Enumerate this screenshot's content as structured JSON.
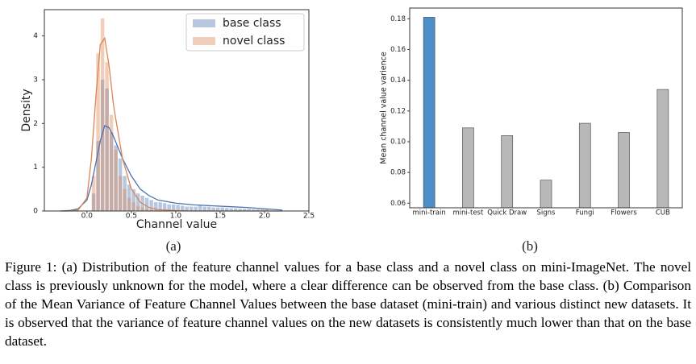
{
  "chart_data": [
    {
      "type": "histogram",
      "label": "(a)",
      "xlabel": "Channel value",
      "ylabel": "Density",
      "bins": [
        0.05,
        0.1,
        0.15,
        0.2,
        0.25,
        0.3,
        0.35,
        0.4,
        0.45,
        0.5,
        0.55,
        0.6,
        0.65,
        0.7,
        0.75,
        0.8,
        0.85,
        0.9,
        0.95,
        1.0,
        1.05,
        1.1,
        1.15,
        1.2,
        1.25,
        1.3,
        1.35,
        1.4,
        1.45,
        1.5,
        1.55,
        1.6,
        1.65,
        1.7,
        1.75,
        1.8,
        1.85,
        1.9,
        1.95,
        2.0,
        2.05
      ],
      "kde_x": [
        -0.3,
        -0.2,
        -0.1,
        0,
        0.05,
        0.1,
        0.15,
        0.2,
        0.25,
        0.3,
        0.4,
        0.5,
        0.6,
        0.7,
        0.8,
        1.0,
        1.2,
        1.4,
        1.6,
        1.8,
        2.0,
        2.2
      ],
      "series": [
        {
          "name": "base class",
          "color": "#4c72b0",
          "values": [
            0.4,
            1.6,
            3.0,
            2.8,
            1.8,
            1.5,
            1.2,
            0.8,
            0.6,
            0.5,
            0.4,
            0.35,
            0.3,
            0.25,
            0.2,
            0.2,
            0.18,
            0.15,
            0.15,
            0.14,
            0.12,
            0.1,
            0.1,
            0.1,
            0.12,
            0.1,
            0.1,
            0.08,
            0.08,
            0.08,
            0.07,
            0.06,
            0.06,
            0.05,
            0.05,
            0.05,
            0.04,
            0.04,
            0.04,
            0.04
          ],
          "kde_values": [
            0,
            0.01,
            0.05,
            0.25,
            0.6,
            1.1,
            1.6,
            1.95,
            1.9,
            1.7,
            1.2,
            0.8,
            0.5,
            0.35,
            0.25,
            0.18,
            0.14,
            0.12,
            0.1,
            0.08,
            0.05,
            0.02
          ]
        },
        {
          "name": "novel class",
          "color": "#dd8452",
          "values": [
            0.8,
            3.6,
            4.4,
            3.4,
            2.2,
            1.4,
            0.8,
            0.5,
            0.3,
            0.2,
            0.12,
            0.08,
            0.05,
            0.03,
            0.02,
            0.01,
            0,
            0,
            0,
            0,
            0,
            0,
            0,
            0,
            0,
            0,
            0,
            0,
            0,
            0,
            0,
            0,
            0,
            0,
            0,
            0,
            0,
            0,
            0,
            0
          ],
          "kde_values": [
            0,
            0,
            0.02,
            0.3,
            1.2,
            2.6,
            3.8,
            3.95,
            3.3,
            2.4,
            1.2,
            0.5,
            0.2,
            0.08,
            0.03,
            0.01,
            0,
            0,
            0,
            0,
            0,
            0
          ]
        }
      ],
      "xlim": [
        -0.48,
        2.5
      ],
      "xticks": [
        {
          "value": 0,
          "label": "0.0"
        },
        0.5,
        {
          "value": 1,
          "label": "1.0"
        },
        1.5,
        {
          "value": 2,
          "label": "2.0"
        },
        2.5
      ],
      "ylim": [
        0,
        4.6
      ],
      "yticks": [
        0,
        1,
        2,
        3,
        4
      ],
      "legend": "upper right"
    },
    {
      "type": "bar",
      "label": "(b)",
      "ylabel": "Mean channel value varience",
      "categories": [
        "mini-train",
        "mini-test",
        "Quick Draw",
        "Signs",
        "Fungi",
        "Flowers",
        "CUB"
      ],
      "values": [
        0.181,
        0.109,
        0.104,
        0.075,
        0.112,
        0.106,
        0.134
      ],
      "colors": [
        "#4a8fc9",
        "#b8b8b8",
        "#b8b8b8",
        "#b8b8b8",
        "#b8b8b8",
        "#b8b8b8",
        "#b8b8b8"
      ],
      "ylim": [
        0.057,
        0.187
      ],
      "yticks": [
        0.06,
        0.08,
        {
          "value": 0.1,
          "label": "0.10"
        },
        0.12,
        0.14,
        0.16,
        0.18
      ]
    }
  ],
  "caption": "Figure 1: (a) Distribution of the feature channel values for a base class and a novel class on mini-ImageNet. The novel class is previously unknown for the model, where a clear difference can be observed from the base class. (b) Comparison of the Mean Variance of Feature Channel Values between the base dataset (mini-train) and various distinct new datasets. It is observed that the variance of feature channel values on the new datasets is consistently much lower than that on the base dataset."
}
